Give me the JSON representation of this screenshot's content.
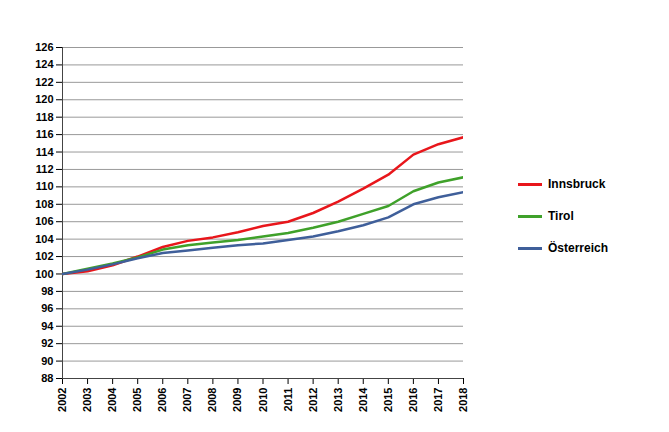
{
  "chart_data": {
    "type": "line",
    "x": [
      2002,
      2003,
      2004,
      2005,
      2006,
      2007,
      2008,
      2009,
      2010,
      2011,
      2012,
      2013,
      2014,
      2015,
      2016,
      2017,
      2018
    ],
    "series": [
      {
        "name": "Innsbruck",
        "color": "#e8161b",
        "values": [
          100,
          100.3,
          101.0,
          102.0,
          103.1,
          103.8,
          104.2,
          104.8,
          105.5,
          106.0,
          107.0,
          108.3,
          109.8,
          111.4,
          113.7,
          114.9,
          115.7
        ]
      },
      {
        "name": "Tirol",
        "color": "#3fa12a",
        "values": [
          100,
          100.6,
          101.2,
          101.9,
          102.8,
          103.3,
          103.6,
          103.9,
          104.3,
          104.7,
          105.3,
          106.0,
          106.9,
          107.8,
          109.5,
          110.5,
          111.1
        ]
      },
      {
        "name": "Österreich",
        "color": "#3f5f9a",
        "values": [
          100,
          100.5,
          101.1,
          101.8,
          102.4,
          102.7,
          103.0,
          103.3,
          103.5,
          103.9,
          104.3,
          104.9,
          105.6,
          106.5,
          108.0,
          108.8,
          109.4
        ]
      }
    ],
    "xlim": [
      2002,
      2018
    ],
    "xticks": [
      2002,
      2003,
      2004,
      2005,
      2006,
      2007,
      2008,
      2009,
      2010,
      2011,
      2012,
      2013,
      2014,
      2015,
      2016,
      2017,
      2018
    ],
    "ylim": [
      88,
      126
    ],
    "yticks": [
      88,
      90,
      92,
      94,
      96,
      98,
      100,
      102,
      104,
      106,
      108,
      110,
      112,
      114,
      116,
      118,
      120,
      122,
      124,
      126
    ],
    "grid": true,
    "legend": "right"
  }
}
